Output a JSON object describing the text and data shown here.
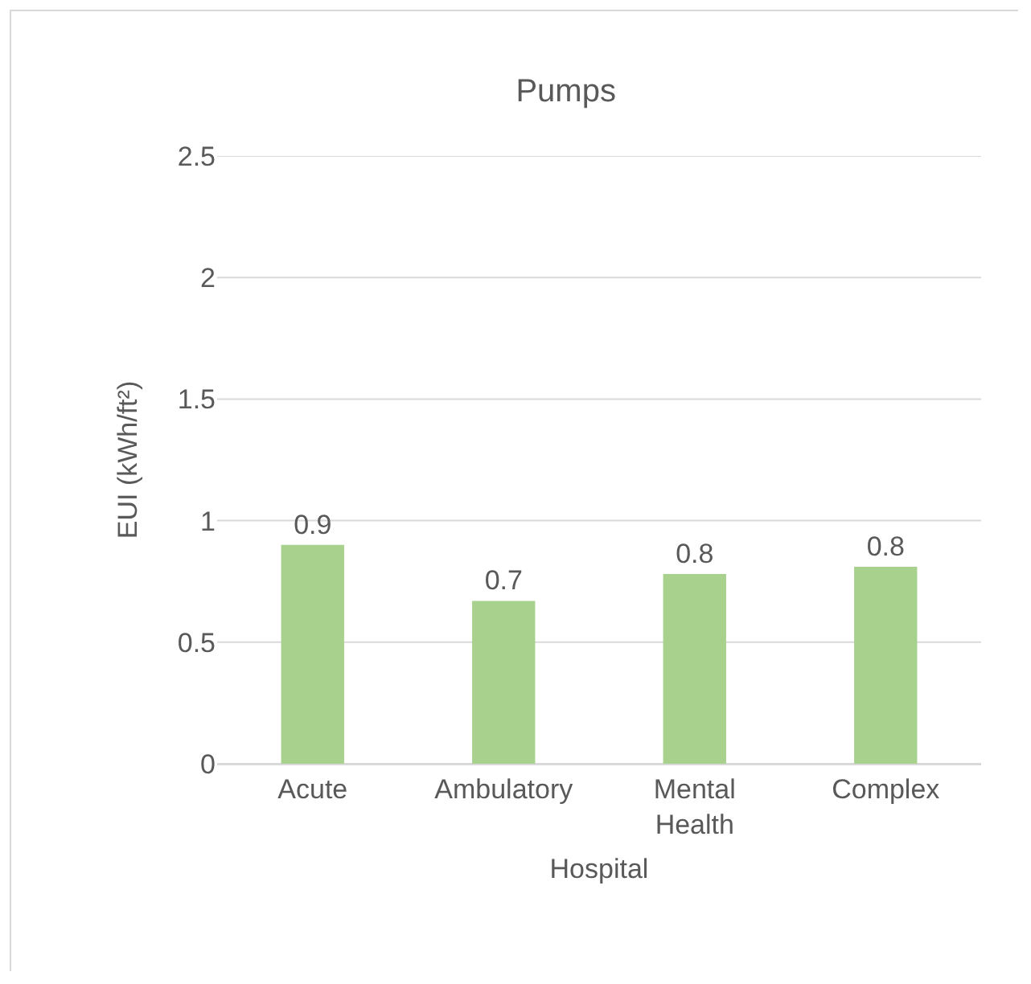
{
  "chart_data": {
    "type": "bar",
    "title": "Pumps",
    "xlabel": "Hospital",
    "ylabel": "EUI (kWh/ft²)",
    "categories": [
      "Acute",
      "Ambulatory",
      "Mental Health",
      "Complex"
    ],
    "values": [
      0.9,
      0.67,
      0.78,
      0.81
    ],
    "value_labels": [
      "0.9",
      "0.7",
      "0.8",
      "0.8"
    ],
    "color": "#a9d18e",
    "ylim": [
      0,
      2.5
    ],
    "yticks": [
      0,
      0.5,
      1,
      1.5,
      2,
      2.5
    ],
    "grid": "y"
  }
}
